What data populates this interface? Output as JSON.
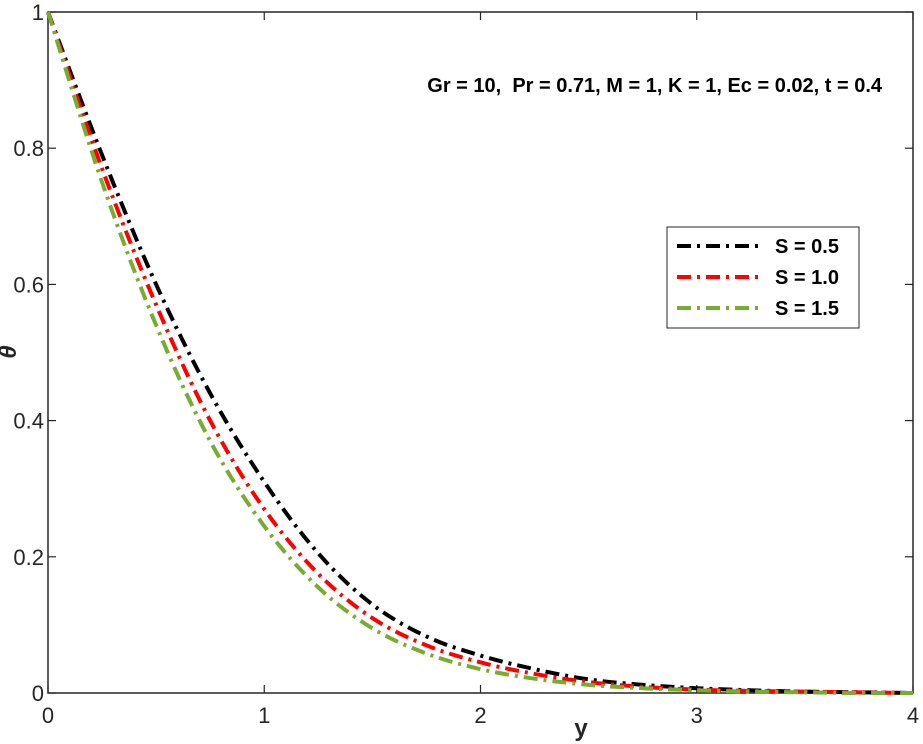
{
  "chart_data": {
    "type": "line",
    "title": "",
    "xlabel": "y",
    "ylabel": "θ",
    "xlim": [
      0,
      4
    ],
    "ylim": [
      0,
      1
    ],
    "xticks": [
      0,
      1,
      2,
      3,
      4
    ],
    "xtick_labels": [
      "0",
      "1",
      "2",
      "3",
      "4"
    ],
    "yticks": [
      0,
      0.2,
      0.4,
      0.6,
      0.8,
      1
    ],
    "ytick_labels": [
      "0",
      "0.2",
      "0.4",
      "0.6",
      "0.8",
      "1"
    ],
    "grid": false,
    "legend_position": "right",
    "annotation": "Gr = 10,  Pr = 0.71, M = 1, K = 1, Ec = 0.02, t = 0.4",
    "x": [
      0,
      0.25,
      0.5,
      0.75,
      1.0,
      1.25,
      1.5,
      1.75,
      2.0,
      2.25,
      2.5,
      2.75,
      3.0,
      3.25,
      3.5,
      3.75,
      4.0
    ],
    "series": [
      {
        "name": "S = 0.5",
        "color": "#000000",
        "values": [
          1.0,
          0.79,
          0.6,
          0.44,
          0.31,
          0.205,
          0.13,
          0.083,
          0.055,
          0.035,
          0.02,
          0.012,
          0.007,
          0.004,
          0.002,
          0.001,
          0.0
        ]
      },
      {
        "name": "S = 1.0",
        "color": "#ff0000",
        "values": [
          1.0,
          0.77,
          0.57,
          0.4,
          0.27,
          0.175,
          0.11,
          0.07,
          0.045,
          0.028,
          0.016,
          0.009,
          0.005,
          0.003,
          0.002,
          0.001,
          0.0
        ]
      },
      {
        "name": "S = 1.5",
        "color": "#77ac30",
        "values": [
          1.0,
          0.75,
          0.54,
          0.37,
          0.245,
          0.155,
          0.095,
          0.058,
          0.035,
          0.021,
          0.012,
          0.007,
          0.004,
          0.002,
          0.001,
          0.0,
          0.0
        ]
      }
    ]
  }
}
